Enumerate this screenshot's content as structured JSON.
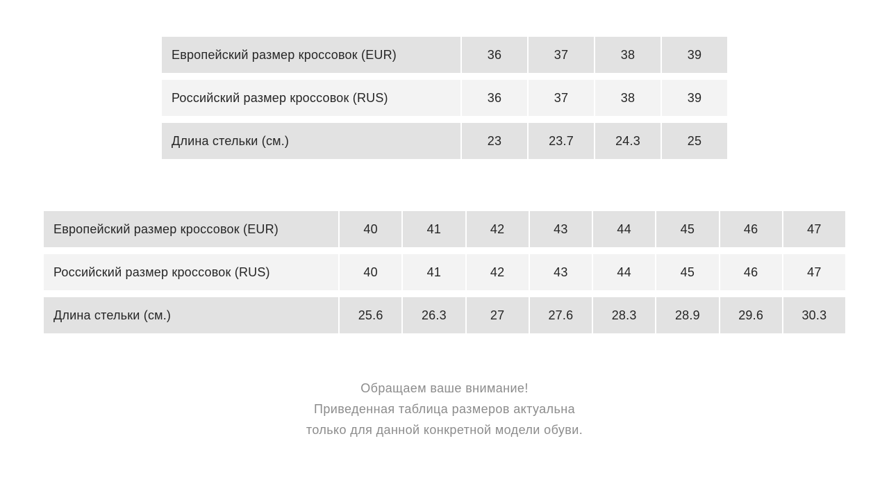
{
  "chart_data": [
    {
      "type": "table",
      "title": "",
      "rows": [
        {
          "label": "Европейский размер кроссовок (EUR)",
          "values": [
            "36",
            "37",
            "38",
            "39"
          ]
        },
        {
          "label": "Российский размер кроссовок (RUS)",
          "values": [
            "36",
            "37",
            "38",
            "39"
          ]
        },
        {
          "label": "Длина стельки (см.)",
          "values": [
            "23",
            "23.7",
            "24.3",
            "25"
          ]
        }
      ]
    },
    {
      "type": "table",
      "title": "",
      "rows": [
        {
          "label": "Европейский размер кроссовок (EUR)",
          "values": [
            "40",
            "41",
            "42",
            "43",
            "44",
            "45",
            "46",
            "47"
          ]
        },
        {
          "label": "Российский размер кроссовок (RUS)",
          "values": [
            "40",
            "41",
            "42",
            "43",
            "44",
            "45",
            "46",
            "47"
          ]
        },
        {
          "label": "Длина стельки (см.)",
          "values": [
            "25.6",
            "26.3",
            "27",
            "27.6",
            "28.3",
            "28.9",
            "29.6",
            "30.3"
          ]
        }
      ]
    }
  ],
  "note": {
    "lines": [
      "Обращаем ваше внимание!",
      "Приведенная таблица размеров актуальна",
      "только для данной конкретной модели обуви."
    ]
  },
  "colors": {
    "row_dark": "#e2e2e2",
    "row_light": "#f3f3f3",
    "table_text": "#262626",
    "note_text": "#8c8c8c",
    "background": "#ffffff"
  }
}
